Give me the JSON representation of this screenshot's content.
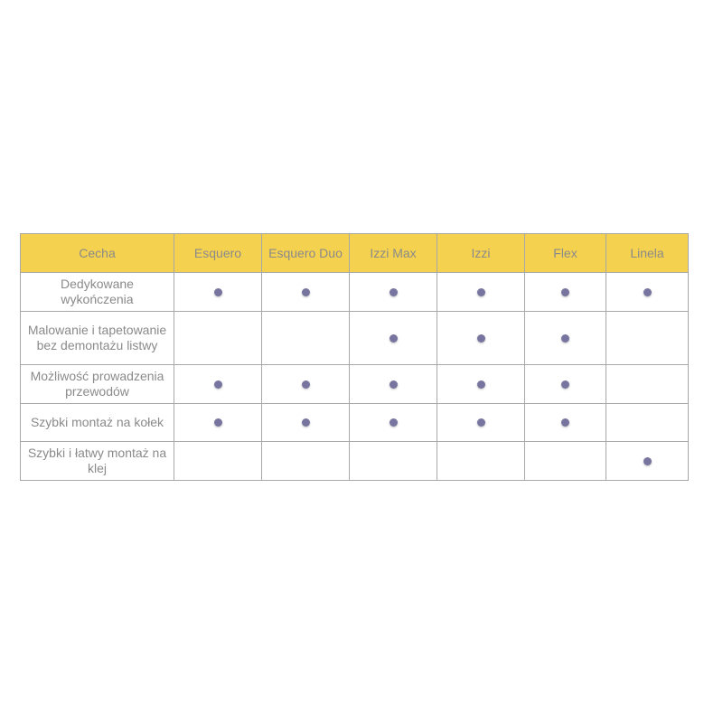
{
  "table": {
    "headers": [
      "Cecha",
      "Esquero",
      "Esquero Duo",
      "Izzi Max",
      "Izzi",
      "Flex",
      "Linela"
    ],
    "rows": [
      {
        "feature": "Dedykowane wykończenia",
        "marks": [
          true,
          true,
          true,
          true,
          true,
          true
        ]
      },
      {
        "feature": "Malowanie i tapetowanie bez demontażu listwy",
        "marks": [
          false,
          false,
          true,
          true,
          true,
          false
        ]
      },
      {
        "feature": "Możliwość prowadzenia przewodów",
        "marks": [
          true,
          true,
          true,
          true,
          true,
          false
        ]
      },
      {
        "feature": "Szybki montaż na kołek",
        "marks": [
          true,
          true,
          true,
          true,
          true,
          false
        ]
      },
      {
        "feature": "Szybki i łatwy montaż na klej",
        "marks": [
          false,
          false,
          false,
          false,
          false,
          true
        ]
      }
    ],
    "mark_icon": "dot-icon",
    "colors": {
      "header": "#f5d150",
      "dot": "#77759f",
      "text": "#8a8a8a",
      "border": "#a8a8a8"
    }
  }
}
